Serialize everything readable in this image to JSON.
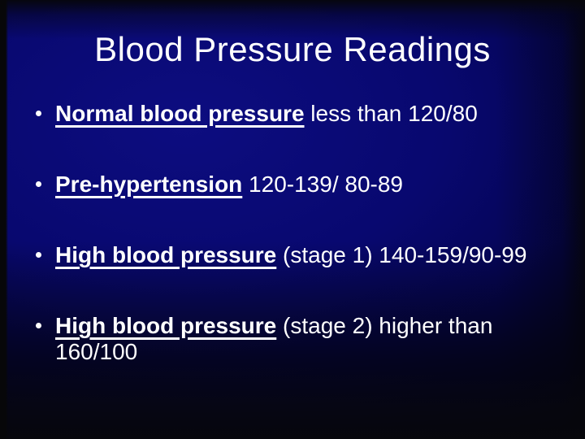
{
  "slide": {
    "title": "Blood Pressure Readings",
    "bullets": [
      {
        "lead": "Normal blood pressure",
        "rest": " less than 120/80"
      },
      {
        "lead": "Pre-hypertension",
        "rest": " 120-139/ 80-89"
      },
      {
        "lead": "High blood pressure",
        "rest": " (stage 1) 140-159/90-99"
      },
      {
        "lead": "High blood pressure",
        "rest": " (stage 2) higher than 160/100"
      }
    ],
    "colors": {
      "center_blue": "#0d0d80",
      "edge_black": "#010114",
      "text": "#ffffff"
    }
  }
}
